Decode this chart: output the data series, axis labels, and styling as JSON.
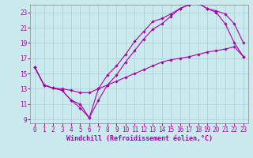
{
  "xlabel": "Windchill (Refroidissement éolien,°C)",
  "bg_color": "#cbeaee",
  "grid_color": "#aad4da",
  "line_color": "#aa00aa",
  "xlim": [
    -0.5,
    23.5
  ],
  "ylim": [
    8.5,
    24.0
  ],
  "xticks": [
    0,
    1,
    2,
    3,
    4,
    5,
    6,
    7,
    8,
    9,
    10,
    11,
    12,
    13,
    14,
    15,
    16,
    17,
    18,
    19,
    20,
    21,
    22,
    23
  ],
  "yticks": [
    9,
    11,
    13,
    15,
    17,
    19,
    21,
    23
  ],
  "line1_x": [
    0,
    1,
    2,
    3,
    4,
    5,
    6,
    7,
    8,
    9,
    10,
    11,
    12,
    13,
    14,
    15,
    16,
    17,
    18,
    19,
    20,
    21,
    22,
    23
  ],
  "line1_y": [
    15.8,
    13.5,
    13.1,
    12.8,
    11.5,
    11.0,
    9.2,
    11.5,
    13.5,
    14.8,
    16.5,
    18.0,
    19.5,
    20.8,
    21.5,
    22.5,
    23.5,
    24.0,
    24.2,
    23.5,
    23.0,
    21.5,
    19.0,
    17.2
  ],
  "line2_x": [
    0,
    1,
    2,
    3,
    4,
    5,
    6,
    7,
    8,
    9,
    10,
    11,
    12,
    13,
    14,
    15,
    16,
    17,
    18,
    19,
    20,
    21,
    22,
    23
  ],
  "line2_y": [
    15.8,
    13.5,
    13.1,
    12.8,
    11.5,
    10.5,
    9.2,
    13.0,
    14.8,
    16.0,
    17.5,
    19.2,
    20.5,
    21.8,
    22.2,
    22.8,
    23.5,
    24.0,
    24.2,
    23.5,
    23.2,
    22.8,
    21.5,
    19.0
  ],
  "line3_x": [
    0,
    1,
    2,
    3,
    4,
    5,
    6,
    7,
    8,
    9,
    10,
    11,
    12,
    13,
    14,
    15,
    16,
    17,
    18,
    19,
    20,
    21,
    22,
    23
  ],
  "line3_y": [
    15.8,
    13.5,
    13.1,
    13.0,
    12.8,
    12.5,
    12.5,
    13.0,
    13.5,
    14.0,
    14.5,
    15.0,
    15.5,
    16.0,
    16.5,
    16.8,
    17.0,
    17.2,
    17.5,
    17.8,
    18.0,
    18.2,
    18.5,
    17.2
  ],
  "xlabel_fontsize": 6.0,
  "tick_fontsize": 5.5
}
